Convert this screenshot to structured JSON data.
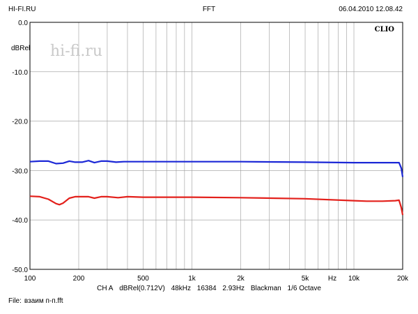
{
  "header": {
    "left": "HI-FI.RU",
    "center": "FFT",
    "right": "06.04.2010 12.08.42"
  },
  "watermark": "hi-fi.ru",
  "brand_label": "CLIO",
  "settings": [
    "CH A",
    "dBRel(0.712V)",
    "48kHz",
    "16384",
    "2.93Hz",
    "Blackman",
    "1/6 Octave"
  ],
  "file": {
    "label": "File:",
    "name": "взаим п-п.fft"
  },
  "colors": {
    "blue_series": "#1c28d6",
    "red_series": "#e3201b",
    "grid": "#9a9a9a"
  },
  "chart_data": {
    "type": "line",
    "x_scale": "log",
    "xlim": [
      100,
      20000
    ],
    "ylim": [
      -50,
      0
    ],
    "ylabel": "dBRel",
    "xlabel": "Hz",
    "grid": true,
    "x_tick_labels": [
      {
        "value": 100,
        "label": "100"
      },
      {
        "value": 200,
        "label": "200"
      },
      {
        "value": 500,
        "label": "500"
      },
      {
        "value": 1000,
        "label": "1k"
      },
      {
        "value": 2000,
        "label": "2k"
      },
      {
        "value": 5000,
        "label": "5k"
      },
      {
        "value": 10000,
        "label": "10k"
      },
      {
        "value": 20000,
        "label": "20k"
      }
    ],
    "y_tick_labels": [
      {
        "value": 0,
        "label": "0.0"
      },
      {
        "value": -10,
        "label": "-10.0"
      },
      {
        "value": -20,
        "label": "-20.0"
      },
      {
        "value": -30,
        "label": "-30.0"
      },
      {
        "value": -40,
        "label": "-40.0"
      },
      {
        "value": -50,
        "label": "-50.0"
      }
    ],
    "series": [
      {
        "color": "#1c28d6",
        "points": [
          [
            100,
            -28.2
          ],
          [
            115,
            -28.1
          ],
          [
            130,
            -28.1
          ],
          [
            145,
            -28.6
          ],
          [
            160,
            -28.5
          ],
          [
            175,
            -28.1
          ],
          [
            190,
            -28.3
          ],
          [
            210,
            -28.3
          ],
          [
            230,
            -28.0
          ],
          [
            250,
            -28.4
          ],
          [
            275,
            -28.1
          ],
          [
            300,
            -28.1
          ],
          [
            340,
            -28.3
          ],
          [
            380,
            -28.2
          ],
          [
            420,
            -28.2
          ],
          [
            500,
            -28.2
          ],
          [
            700,
            -28.2
          ],
          [
            1000,
            -28.2
          ],
          [
            2000,
            -28.2
          ],
          [
            5000,
            -28.3
          ],
          [
            10000,
            -28.4
          ],
          [
            15000,
            -28.4
          ],
          [
            19000,
            -28.4
          ],
          [
            19600,
            -29.5
          ],
          [
            20000,
            -31.3
          ]
        ]
      },
      {
        "color": "#e3201b",
        "points": [
          [
            100,
            -35.2
          ],
          [
            115,
            -35.3
          ],
          [
            130,
            -35.8
          ],
          [
            145,
            -36.7
          ],
          [
            152,
            -36.9
          ],
          [
            160,
            -36.6
          ],
          [
            175,
            -35.6
          ],
          [
            190,
            -35.3
          ],
          [
            210,
            -35.3
          ],
          [
            230,
            -35.3
          ],
          [
            250,
            -35.6
          ],
          [
            275,
            -35.3
          ],
          [
            300,
            -35.3
          ],
          [
            350,
            -35.5
          ],
          [
            400,
            -35.3
          ],
          [
            500,
            -35.4
          ],
          [
            700,
            -35.4
          ],
          [
            1000,
            -35.4
          ],
          [
            2000,
            -35.5
          ],
          [
            5000,
            -35.7
          ],
          [
            10000,
            -36.1
          ],
          [
            12000,
            -36.2
          ],
          [
            15000,
            -36.2
          ],
          [
            18000,
            -36.1
          ],
          [
            19000,
            -36.0
          ],
          [
            19600,
            -37.5
          ],
          [
            20000,
            -39.0
          ]
        ]
      }
    ]
  }
}
